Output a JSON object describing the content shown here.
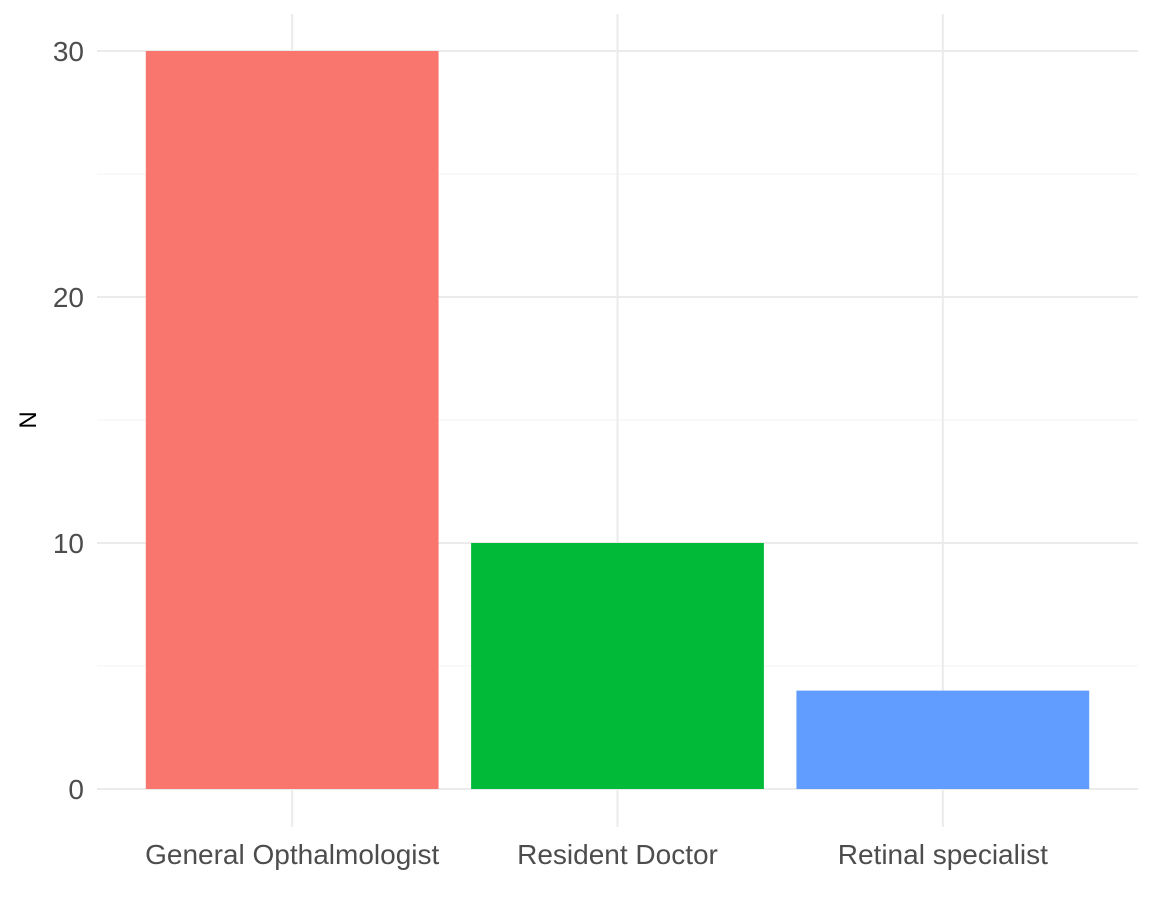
{
  "chart_data": {
    "type": "bar",
    "title": "",
    "xlabel": "",
    "ylabel": "N",
    "categories": [
      "General Opthalmologist",
      "Resident Doctor",
      "Retinal specialist"
    ],
    "values": [
      30,
      10,
      4
    ],
    "colors": [
      "#F8766D",
      "#00BA38",
      "#619CFF"
    ],
    "ylim": [
      0,
      31.5
    ],
    "yticks": [
      0,
      10,
      20,
      30
    ],
    "grid": true,
    "legend": "none"
  }
}
